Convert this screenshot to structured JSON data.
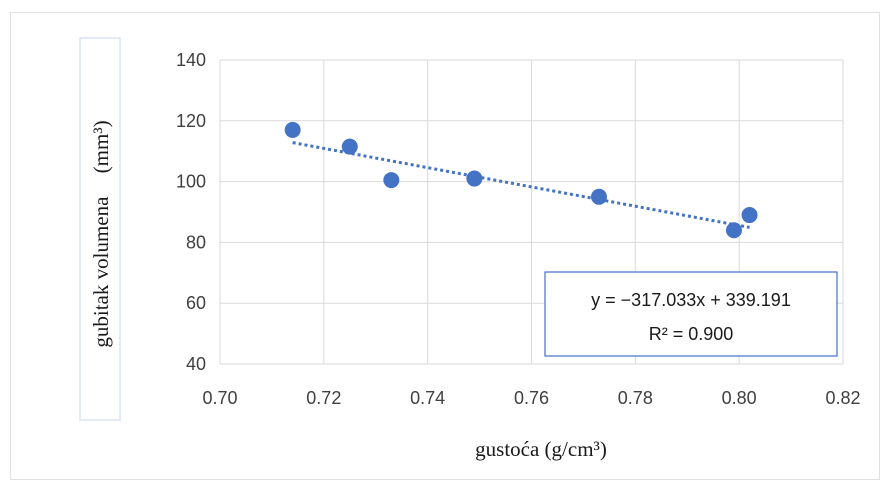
{
  "chart_data": {
    "type": "scatter",
    "xlabel": "gustoća (g/cm³)",
    "ylabel": "gubitak volumena",
    "ylabel_unit": "(mm³)",
    "xlim": [
      0.7,
      0.82
    ],
    "ylim": [
      40,
      140
    ],
    "x_ticks": [
      0.7,
      0.72,
      0.74,
      0.76,
      0.78,
      0.8,
      0.82
    ],
    "x_tick_labels": [
      "0.70",
      "0.72",
      "0.74",
      "0.76",
      "0.78",
      "0.80",
      "0.82"
    ],
    "y_ticks": [
      40,
      60,
      80,
      100,
      120,
      140
    ],
    "y_tick_labels": [
      "40",
      "60",
      "80",
      "100",
      "120",
      "140"
    ],
    "grid": true,
    "series": [
      {
        "x": [
          0.714,
          0.725,
          0.733,
          0.749,
          0.773,
          0.799,
          0.802
        ],
        "y": [
          117,
          111.5,
          100.5,
          101,
          95,
          84,
          89
        ]
      }
    ],
    "trendline": {
      "type": "linear",
      "slope": -317.033,
      "intercept": 339.191,
      "x_range": [
        0.714,
        0.802
      ],
      "style": "dotted"
    },
    "annotations": {
      "equation": "y = −317.033x + 339.191",
      "r_squared": "R² = 0.900"
    },
    "colors": {
      "marker": "#4472c4",
      "trendline": "#4472c4",
      "grid": "#d9d9d9",
      "box_border": "#4472c4"
    }
  }
}
